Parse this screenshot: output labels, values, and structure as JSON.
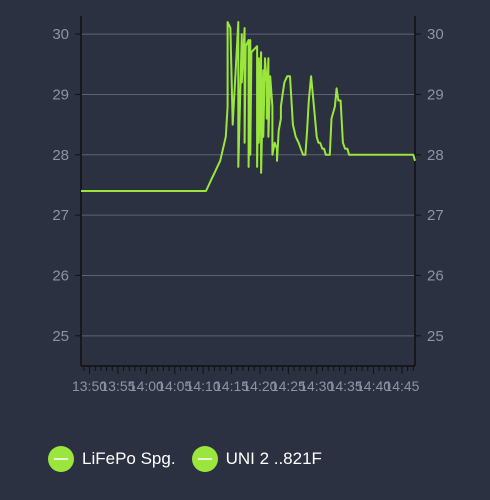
{
  "chart_data": {
    "type": "line",
    "title": "",
    "xlabel": "",
    "ylabel": "",
    "ylim": [
      24.5,
      30.3
    ],
    "yticks": [
      25,
      26,
      27,
      28,
      29,
      30
    ],
    "y_tick_labels": [
      "25",
      "26",
      "27",
      "28",
      "29",
      "30"
    ],
    "x_tick_labels": [
      "13:50",
      "13:55",
      "14:00",
      "14:05",
      "14:10",
      "14:15",
      "14:20",
      "14:25",
      "14:30",
      "14:35",
      "14:40",
      "14:45"
    ],
    "xlim_minutes": [
      13.5,
      72.3
    ],
    "grid": true,
    "legend_position": "bottom-left",
    "color": "#9be63c",
    "legend": [
      {
        "label": "LiFePo Spg.",
        "color": "#9be63c"
      },
      {
        "label": "UNI 2 ..821F",
        "color": "#9be63c"
      }
    ],
    "series": [
      {
        "values_x_minutes": [
          13.5,
          35.5,
          36.0,
          36.5,
          37.0,
          37.5,
          38.0,
          38.5,
          39.0,
          39.3,
          39.3,
          39.8,
          40.2,
          41.2,
          41.2,
          41.8,
          41.8,
          42.3,
          42.3,
          42.5,
          43.0,
          43.0,
          43.3,
          43.3,
          43.5,
          44.5,
          44.5,
          44.8,
          44.8,
          45.2,
          45.2,
          45.6,
          45.6,
          45.9,
          46.2,
          46.2,
          46.5,
          46.5,
          46.8,
          47.2,
          47.2,
          47.6,
          48.0,
          48.0,
          48.3,
          48.7,
          48.7,
          49.0,
          49.3,
          49.8,
          50.3,
          50.8,
          51.3,
          51.8,
          52.2,
          52.6,
          53.0,
          53.3,
          53.6,
          54.0,
          54.3,
          54.6,
          55.0,
          55.3,
          55.6,
          56.0,
          56.3,
          56.6,
          57.0,
          57.3,
          57.6,
          57.9,
          58.2,
          58.5,
          58.8,
          59.2,
          59.6,
          60.0,
          60.4,
          60.7,
          61.0,
          61.3,
          61.6,
          61.9,
          62.2,
          62.5,
          62.9,
          63.2,
          63.5,
          63.8,
          64.1,
          64.4,
          64.7,
          65.0,
          65.4,
          65.8,
          66.0,
          66.3,
          66.6,
          66.8,
          67.1,
          67.4,
          67.6,
          67.9,
          68.2,
          68.5,
          68.8,
          69.1,
          69.4,
          69.7,
          70.0,
          70.3,
          70.6,
          71.0,
          71.5,
          72.0,
          72.3
        ],
        "values_y": [
          27.4,
          27.4,
          27.5,
          27.6,
          27.7,
          27.8,
          27.9,
          28.1,
          28.3,
          28.8,
          30.2,
          30.1,
          28.5,
          30.2,
          27.8,
          30.0,
          29.2,
          30.1,
          28.2,
          29.8,
          29.9,
          27.8,
          29.9,
          28.0,
          29.7,
          29.8,
          27.8,
          29.6,
          28.2,
          29.7,
          27.7,
          29.4,
          28.3,
          29.6,
          29.2,
          28.6,
          29.6,
          28.3,
          29.3,
          28.8,
          28.0,
          28.2,
          28.1,
          27.9,
          28.4,
          28.6,
          28.8,
          29.0,
          29.2,
          29.3,
          29.3,
          28.5,
          28.3,
          28.2,
          28.1,
          28.0,
          28.0,
          28.4,
          28.9,
          29.3,
          29.0,
          28.7,
          28.3,
          28.2,
          28.2,
          28.1,
          28.1,
          28.0,
          28.0,
          28.0,
          28.6,
          28.7,
          28.8,
          29.1,
          28.9,
          28.9,
          28.2,
          28.1,
          28.1,
          28.0,
          28.0,
          28.0,
          28.0,
          28.0,
          28.0,
          28.0,
          28.0,
          28.0,
          28.0,
          28.0,
          28.0,
          28.0,
          28.0,
          28.0,
          28.0,
          28.0,
          28.0,
          28.0,
          28.0,
          28.0,
          28.0,
          28.0,
          28.0,
          28.0,
          28.0,
          28.0,
          28.0,
          28.0,
          28.0,
          28.0,
          28.0,
          28.0,
          28.0,
          28.0,
          28.0,
          28.0,
          27.9
        ]
      }
    ]
  }
}
